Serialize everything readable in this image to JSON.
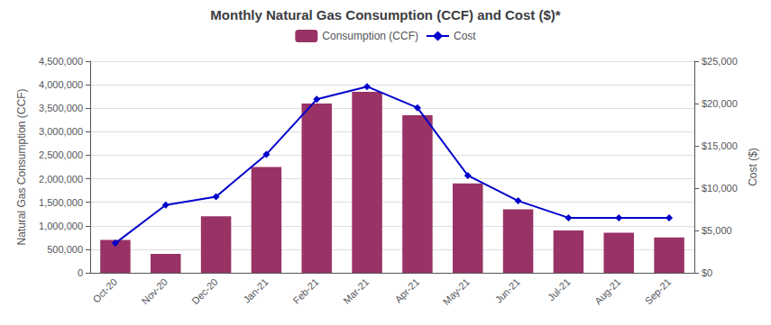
{
  "chart_data": {
    "type": "bar",
    "title": "Monthly Natural Gas Consumption (CCF) and Cost ($)*",
    "categories": [
      "Oct-20",
      "Nov-20",
      "Dec-20",
      "Jan-21",
      "Feb-21",
      "Mar-21",
      "Apr-21",
      "May-21",
      "Jun-21",
      "Jul-21",
      "Aug-21",
      "Sep-21"
    ],
    "series": [
      {
        "name": "Consumption (CCF)",
        "type": "bar",
        "color": "#993366",
        "values": [
          700000,
          400000,
          1200000,
          2250000,
          3600000,
          3850000,
          3350000,
          1900000,
          1350000,
          900000,
          850000,
          750000
        ]
      },
      {
        "name": "Cost",
        "type": "line",
        "axis": "y2",
        "color": "#0000CC",
        "marker": "diamond",
        "values": [
          3500,
          8000,
          9000,
          14000,
          20500,
          22000,
          19500,
          11500,
          8500,
          6500,
          6500,
          6500
        ]
      }
    ],
    "ylabel": "Natural Gas Consumption (CCF)",
    "y2label": "Cost ($)",
    "ylim": [
      0,
      4500000
    ],
    "yticks": [
      0,
      {
        "value": 500000,
        "label": "500,000"
      },
      {
        "value": 1000000,
        "label": "1,000,000"
      },
      {
        "value": 1500000,
        "label": "1,500,000"
      },
      {
        "value": 2000000,
        "label": "2,000,000"
      },
      {
        "value": 2500000,
        "label": "2,500,000"
      },
      {
        "value": 3000000,
        "label": "3,000,000"
      },
      {
        "value": 3500000,
        "label": "3,500,000"
      },
      {
        "value": 4000000,
        "label": "4,000,000"
      },
      {
        "value": 4500000,
        "label": "4,500,000"
      }
    ],
    "y2lim": [
      0,
      25000
    ],
    "y2ticks": [
      {
        "value": 0,
        "label": "$0"
      },
      {
        "value": 5000,
        "label": "$5,000"
      },
      {
        "value": 10000,
        "label": "$10,000"
      },
      {
        "value": 15000,
        "label": "$15,000"
      },
      {
        "value": 20000,
        "label": "$20,000"
      },
      {
        "value": 25000,
        "label": "$25,000"
      }
    ],
    "grid": true,
    "legend": "top"
  }
}
